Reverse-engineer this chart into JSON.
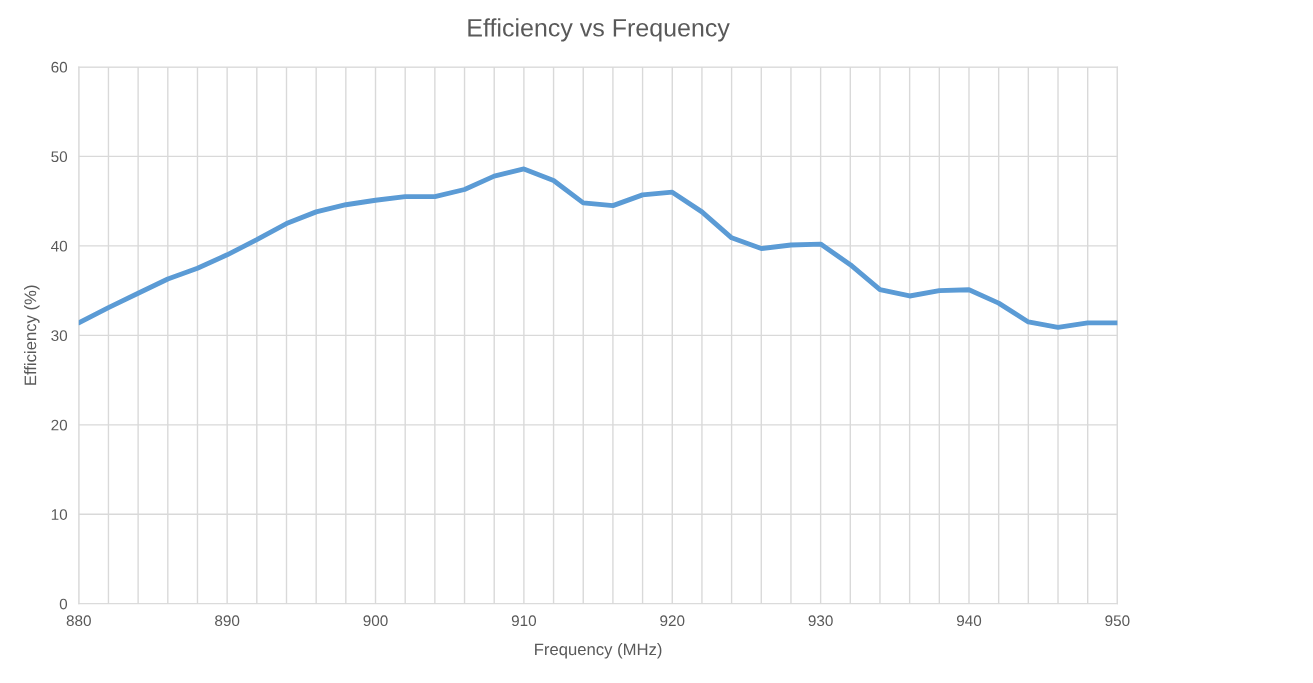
{
  "chart_data": {
    "type": "line",
    "title": "Efficiency vs Frequency",
    "xlabel": "Frequency (MHz)",
    "ylabel": "Efficiency (%)",
    "xlim": [
      880,
      950
    ],
    "xticks": [
      880,
      {
        "value": 882,
        "label": null
      },
      {
        "value": 884,
        "label": null
      },
      {
        "value": 886,
        "label": null
      },
      {
        "value": 888,
        "label": null
      },
      890,
      {
        "value": 892,
        "label": null
      },
      {
        "value": 894,
        "label": null
      },
      {
        "value": 896,
        "label": null
      },
      {
        "value": 898,
        "label": null
      },
      900,
      {
        "value": 902,
        "label": null
      },
      {
        "value": 904,
        "label": null
      },
      {
        "value": 906,
        "label": null
      },
      {
        "value": 908,
        "label": null
      },
      910,
      {
        "value": 912,
        "label": null
      },
      {
        "value": 914,
        "label": null
      },
      {
        "value": 916,
        "label": null
      },
      {
        "value": 918,
        "label": null
      },
      920,
      {
        "value": 922,
        "label": null
      },
      {
        "value": 924,
        "label": null
      },
      {
        "value": 926,
        "label": null
      },
      {
        "value": 928,
        "label": null
      },
      930,
      {
        "value": 932,
        "label": null
      },
      {
        "value": 934,
        "label": null
      },
      {
        "value": 936,
        "label": null
      },
      {
        "value": 938,
        "label": null
      },
      940,
      {
        "value": 942,
        "label": null
      },
      {
        "value": 944,
        "label": null
      },
      {
        "value": 946,
        "label": null
      },
      {
        "value": 948,
        "label": null
      },
      950
    ],
    "ylim": [
      0,
      60
    ],
    "yticks": [
      0,
      10,
      20,
      30,
      40,
      50,
      60
    ],
    "grid": true,
    "marker": "none",
    "x": [
      880,
      882,
      884,
      886,
      888,
      890,
      892,
      894,
      896,
      898,
      900,
      902,
      904,
      906,
      908,
      910,
      912,
      914,
      916,
      918,
      920,
      922,
      924,
      926,
      928,
      930,
      932,
      934,
      936,
      938,
      940,
      942,
      944,
      946,
      948,
      950
    ],
    "series": [
      {
        "color": "#5b9bd5",
        "values": [
          31.4,
          33.1,
          34.7,
          36.3,
          37.5,
          39.0,
          40.7,
          42.5,
          43.8,
          44.6,
          45.1,
          45.5,
          45.5,
          46.3,
          47.8,
          48.6,
          47.3,
          44.8,
          44.5,
          45.7,
          46.0,
          43.8,
          40.9,
          39.7,
          40.1,
          40.2,
          37.9,
          35.1,
          34.4,
          35.0,
          35.1,
          33.6,
          31.5,
          30.9,
          31.4,
          31.4
        ]
      }
    ]
  }
}
